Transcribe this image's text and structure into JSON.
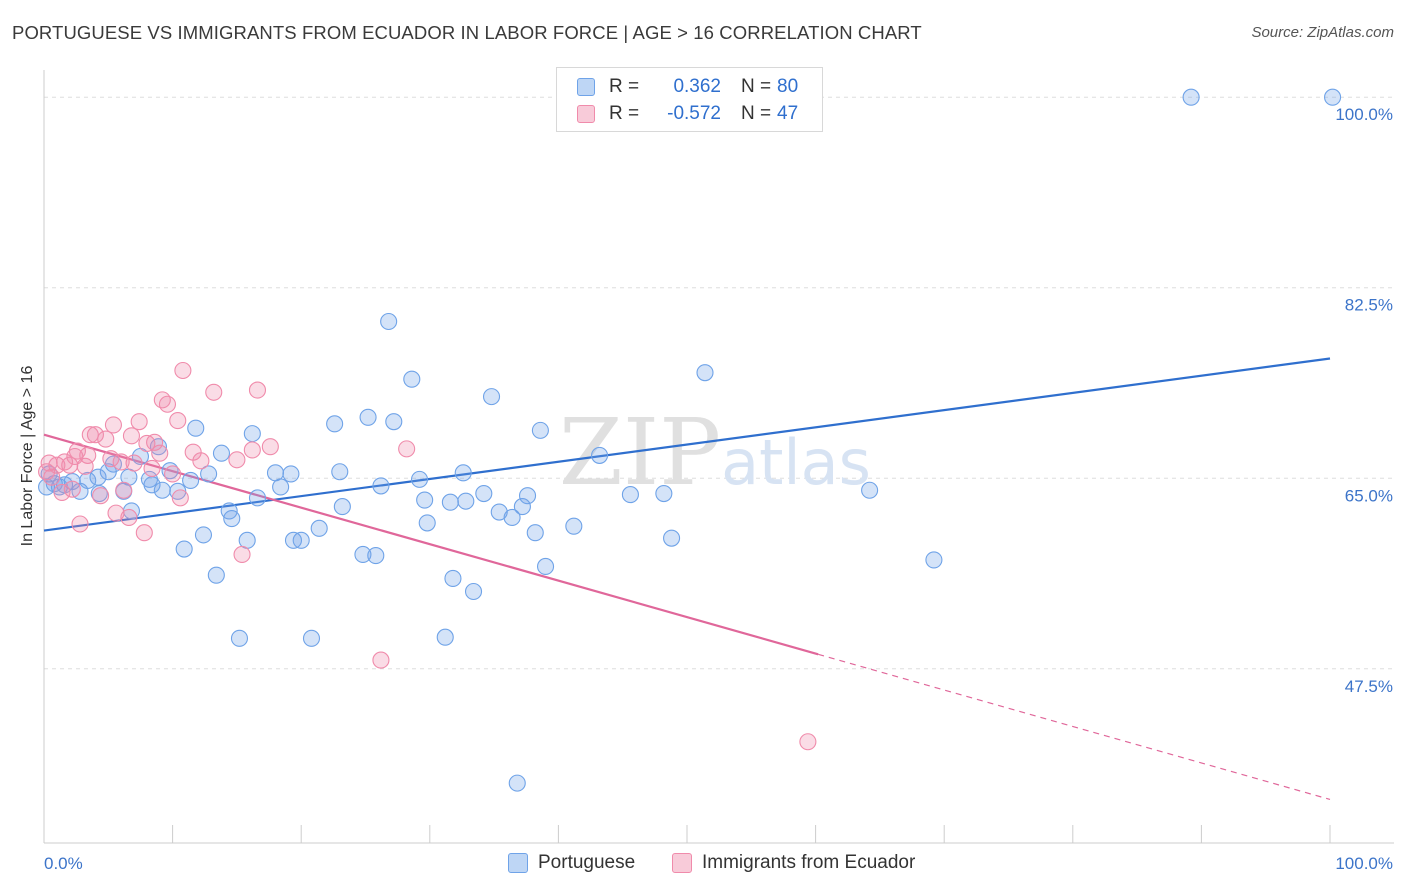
{
  "title": "PORTUGUESE VS IMMIGRANTS FROM ECUADOR IN LABOR FORCE | AGE > 16 CORRELATION CHART",
  "source": "Source: ZipAtlas.com",
  "watermark": {
    "zip": "ZIP",
    "atlas": "atlas"
  },
  "legend": {
    "r_label": "R =",
    "n_label": "N =",
    "items": [
      {
        "name": "Portuguese",
        "r": "0.362",
        "n": "80",
        "color": "#6fa3e8"
      },
      {
        "name": "Immigrants from Ecuador",
        "r": "-0.572",
        "n": "47",
        "color": "#f08bab"
      }
    ]
  },
  "chart_data": {
    "type": "scatter",
    "title": "PORTUGUESE VS IMMIGRANTS FROM ECUADOR IN LABOR FORCE | AGE > 16 CORRELATION CHART",
    "xlabel": "",
    "ylabel": "In Labor Force | Age > 16",
    "xlim": [
      0,
      100
    ],
    "ylim": [
      31.5,
      102.5
    ],
    "x_tick_labels": [
      "0.0%",
      "100.0%"
    ],
    "y_ticks": [
      47.5,
      65.0,
      82.5,
      100.0
    ],
    "y_tick_labels": [
      "47.5%",
      "65.0%",
      "82.5%",
      "100.0%"
    ],
    "grid": "horizontal dashed",
    "legend_placement": "top-center",
    "series": [
      {
        "name": "Portuguese",
        "color": "#6fa3e8",
        "line_color": "#2f6fce",
        "trend": {
          "x": [
            0,
            100
          ],
          "y": [
            60.2,
            76.0
          ],
          "dashed_from": null
        },
        "points": [
          [
            0.2,
            64.2
          ],
          [
            0.4,
            65.4
          ],
          [
            0.8,
            64.5
          ],
          [
            1.2,
            64.2
          ],
          [
            1.6,
            64.4
          ],
          [
            2.2,
            64.7
          ],
          [
            2.8,
            63.8
          ],
          [
            3.4,
            64.8
          ],
          [
            4.2,
            65.1
          ],
          [
            4.3,
            63.6
          ],
          [
            5.0,
            65.6
          ],
          [
            5.4,
            66.3
          ],
          [
            6.2,
            63.8
          ],
          [
            6.6,
            65.1
          ],
          [
            6.8,
            62.0
          ],
          [
            7.5,
            67.0
          ],
          [
            8.2,
            64.9
          ],
          [
            8.4,
            64.4
          ],
          [
            8.9,
            67.9
          ],
          [
            9.2,
            63.9
          ],
          [
            9.8,
            65.7
          ],
          [
            10.4,
            63.8
          ],
          [
            10.9,
            58.5
          ],
          [
            11.4,
            64.8
          ],
          [
            11.8,
            69.6
          ],
          [
            12.4,
            59.8
          ],
          [
            12.8,
            65.4
          ],
          [
            13.4,
            56.1
          ],
          [
            13.8,
            67.3
          ],
          [
            14.4,
            62.0
          ],
          [
            14.6,
            61.3
          ],
          [
            15.2,
            50.3
          ],
          [
            15.8,
            59.3
          ],
          [
            16.2,
            69.1
          ],
          [
            16.6,
            63.2
          ],
          [
            18.0,
            65.5
          ],
          [
            18.4,
            64.2
          ],
          [
            19.2,
            65.4
          ],
          [
            19.4,
            59.3
          ],
          [
            20.0,
            59.3
          ],
          [
            20.8,
            50.3
          ],
          [
            21.4,
            60.4
          ],
          [
            22.6,
            70.0
          ],
          [
            23.0,
            65.6
          ],
          [
            23.2,
            62.4
          ],
          [
            24.8,
            58.0
          ],
          [
            25.2,
            70.6
          ],
          [
            25.8,
            57.9
          ],
          [
            26.2,
            64.3
          ],
          [
            26.8,
            79.4
          ],
          [
            27.2,
            70.2
          ],
          [
            28.6,
            74.1
          ],
          [
            29.2,
            64.9
          ],
          [
            29.6,
            63.0
          ],
          [
            29.8,
            60.9
          ],
          [
            31.2,
            50.4
          ],
          [
            31.6,
            62.8
          ],
          [
            31.8,
            55.8
          ],
          [
            32.6,
            65.5
          ],
          [
            32.8,
            62.9
          ],
          [
            33.4,
            54.6
          ],
          [
            34.2,
            63.6
          ],
          [
            34.8,
            72.5
          ],
          [
            35.4,
            61.9
          ],
          [
            36.4,
            61.4
          ],
          [
            36.8,
            37.0
          ],
          [
            37.2,
            62.4
          ],
          [
            37.6,
            63.4
          ],
          [
            38.2,
            60.0
          ],
          [
            38.6,
            69.4
          ],
          [
            39.0,
            56.9
          ],
          [
            41.2,
            60.6
          ],
          [
            43.2,
            67.1
          ],
          [
            45.6,
            63.5
          ],
          [
            48.2,
            63.6
          ],
          [
            48.8,
            59.5
          ],
          [
            51.4,
            74.7
          ],
          [
            64.2,
            63.9
          ],
          [
            69.2,
            57.5
          ],
          [
            89.2,
            100.0
          ],
          [
            100.2,
            100.0
          ]
        ]
      },
      {
        "name": "Immigrants from Ecuador",
        "color": "#f08bab",
        "line_color": "#e0679a",
        "trend": {
          "x": [
            0,
            100
          ],
          "y": [
            69.0,
            35.5
          ],
          "dashed_from": 60.2
        },
        "points": [
          [
            0.2,
            65.6
          ],
          [
            0.4,
            66.4
          ],
          [
            0.6,
            65.1
          ],
          [
            1.0,
            66.2
          ],
          [
            1.4,
            63.7
          ],
          [
            1.6,
            66.5
          ],
          [
            2.0,
            66.2
          ],
          [
            2.2,
            64.0
          ],
          [
            2.4,
            67.0
          ],
          [
            2.6,
            67.5
          ],
          [
            2.8,
            60.8
          ],
          [
            3.2,
            66.1
          ],
          [
            3.4,
            67.1
          ],
          [
            3.6,
            69.0
          ],
          [
            4.0,
            69.0
          ],
          [
            4.4,
            63.4
          ],
          [
            4.8,
            68.6
          ],
          [
            5.2,
            66.8
          ],
          [
            5.4,
            69.9
          ],
          [
            5.6,
            61.8
          ],
          [
            6.0,
            66.5
          ],
          [
            6.2,
            63.9
          ],
          [
            6.6,
            61.4
          ],
          [
            6.8,
            68.9
          ],
          [
            7.0,
            66.4
          ],
          [
            7.4,
            70.2
          ],
          [
            7.8,
            60.0
          ],
          [
            8.0,
            68.2
          ],
          [
            8.4,
            65.9
          ],
          [
            8.6,
            68.3
          ],
          [
            9.0,
            67.3
          ],
          [
            9.2,
            72.2
          ],
          [
            9.6,
            71.8
          ],
          [
            10.0,
            65.4
          ],
          [
            10.4,
            70.3
          ],
          [
            10.6,
            63.2
          ],
          [
            10.8,
            74.9
          ],
          [
            11.6,
            67.4
          ],
          [
            12.2,
            66.6
          ],
          [
            13.2,
            72.9
          ],
          [
            15.0,
            66.7
          ],
          [
            15.4,
            58.0
          ],
          [
            16.2,
            67.6
          ],
          [
            16.6,
            73.1
          ],
          [
            17.6,
            67.9
          ],
          [
            26.2,
            48.3
          ],
          [
            28.2,
            67.7
          ],
          [
            59.4,
            40.8
          ]
        ]
      }
    ]
  }
}
